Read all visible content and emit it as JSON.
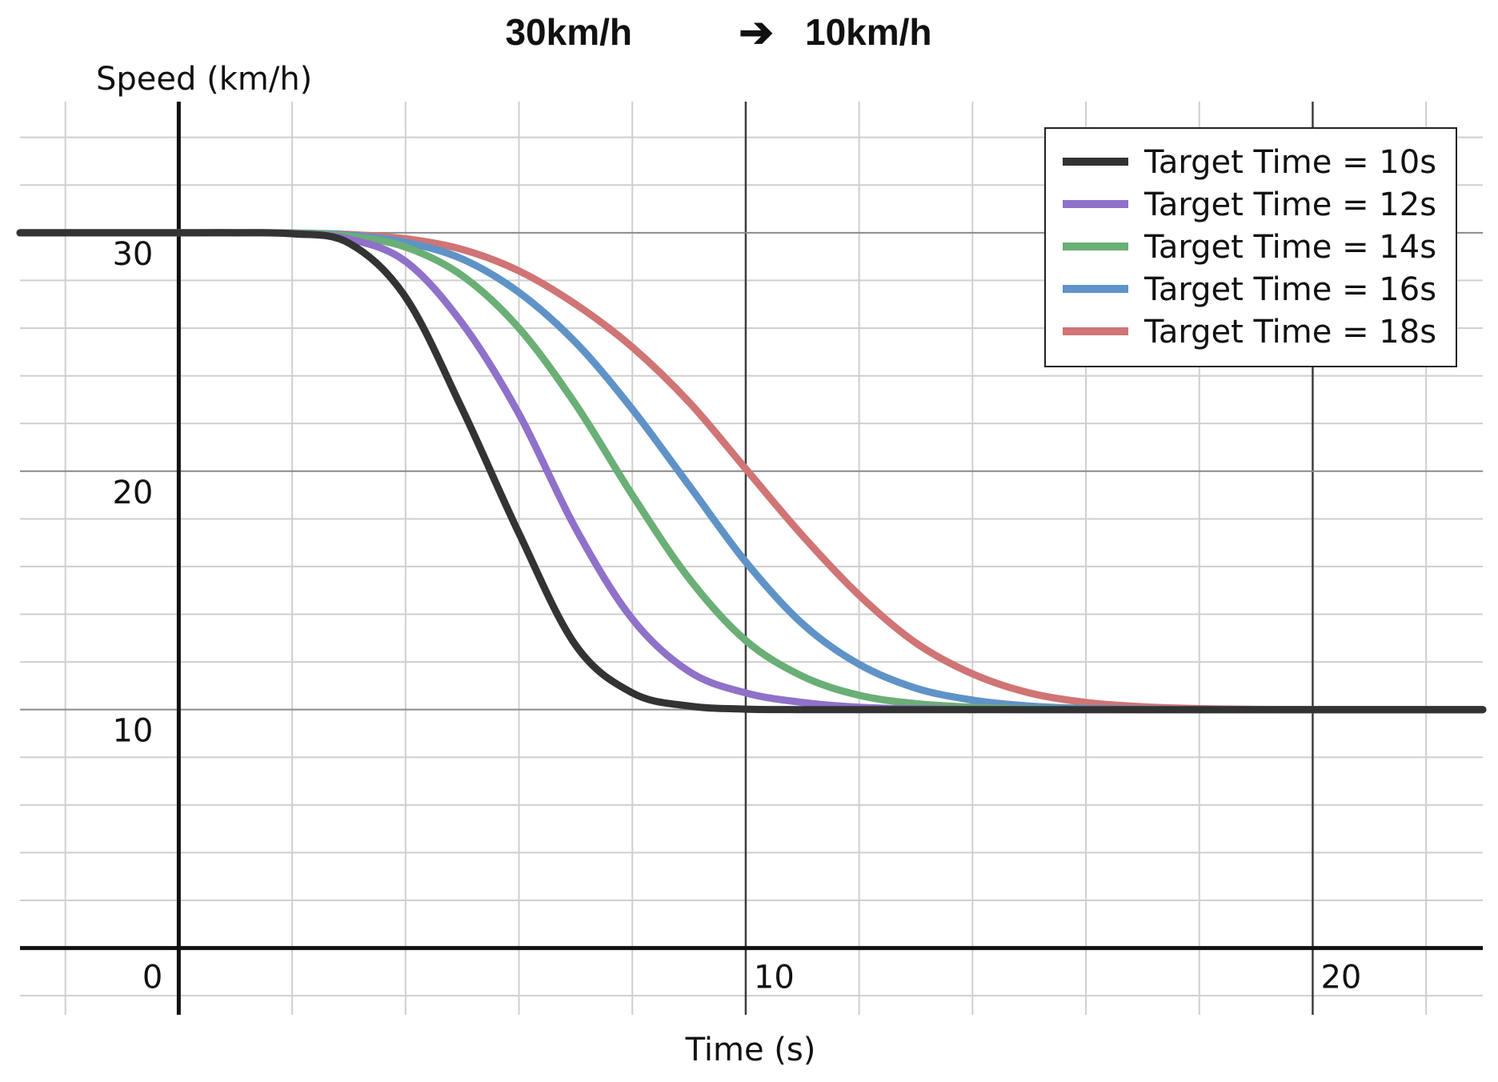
{
  "chart_data": {
    "type": "line",
    "title_from": "30km/h",
    "title_arrow": "➔",
    "title_to": "10km/h",
    "xlabel": "Time (s)",
    "ylabel": "Speed (km/h)",
    "xlim": [
      -2.8,
      23.0
    ],
    "ylim": [
      -2.8,
      35.5
    ],
    "x_ticks": [
      {
        "value": 0,
        "label": "0"
      },
      {
        "value": 10,
        "label": "10"
      },
      {
        "value": 20,
        "label": "20"
      }
    ],
    "y_ticks": [
      {
        "value": 10,
        "label": "10"
      },
      {
        "value": 20,
        "label": "20"
      },
      {
        "value": 30,
        "label": "30"
      }
    ],
    "grid": true,
    "legend_position": "top-right",
    "initial_speed": 30,
    "final_speed": 10,
    "x": [
      -2.8,
      -2.0,
      -1.0,
      0.0,
      1.0,
      2.0,
      3.0,
      4.0,
      5.0,
      6.0,
      7.0,
      8.0,
      9.0,
      10.0,
      11.0,
      12.0,
      13.0,
      14.0,
      15.0,
      16.0,
      17.0,
      18.0,
      19.0,
      20.0,
      21.0,
      22.0,
      23.0
    ],
    "series": [
      {
        "name": "Target Time = 10s",
        "color": "#333333",
        "values": [
          30,
          30,
          30,
          30,
          30,
          29.96,
          29.57,
          27.3,
          22.6,
          17.4,
          12.7,
          10.7,
          10.15,
          10.02,
          10,
          10,
          10,
          10,
          10,
          10,
          10,
          10,
          10,
          10,
          10,
          10,
          10
        ]
      },
      {
        "name": "Target Time = 12s",
        "color": "#8f71c9",
        "values": [
          30,
          30,
          30,
          30,
          30,
          29.96,
          29.74,
          28.8,
          26.2,
          22.4,
          17.6,
          13.8,
          11.6,
          10.7,
          10.3,
          10.1,
          10.03,
          10.01,
          10,
          10,
          10,
          10,
          10,
          10,
          10,
          10,
          10
        ]
      },
      {
        "name": "Target Time = 14s",
        "color": "#6aaf76",
        "values": [
          30,
          30,
          30,
          30,
          30,
          29.98,
          29.86,
          29.4,
          28.2,
          26.0,
          22.8,
          19.0,
          15.5,
          12.9,
          11.4,
          10.6,
          10.25,
          10.1,
          10.03,
          10.01,
          10,
          10,
          10,
          10,
          10,
          10,
          10
        ]
      },
      {
        "name": "Target Time = 16s",
        "color": "#5f93c7",
        "values": [
          30,
          30,
          30,
          30,
          30,
          29.99,
          29.9,
          29.6,
          28.9,
          27.5,
          25.4,
          22.6,
          19.4,
          16.2,
          13.6,
          11.9,
          10.9,
          10.4,
          10.15,
          10.05,
          10.02,
          10,
          10,
          10,
          10,
          10,
          10
        ]
      },
      {
        "name": "Target Time = 18s",
        "color": "#d07475",
        "values": [
          30,
          30,
          30,
          30,
          30,
          29.99,
          29.93,
          29.75,
          29.3,
          28.4,
          27.0,
          25.2,
          22.9,
          20.1,
          17.3,
          14.8,
          12.8,
          11.5,
          10.7,
          10.3,
          10.12,
          10.04,
          10.01,
          10,
          10,
          10,
          10
        ]
      }
    ]
  }
}
